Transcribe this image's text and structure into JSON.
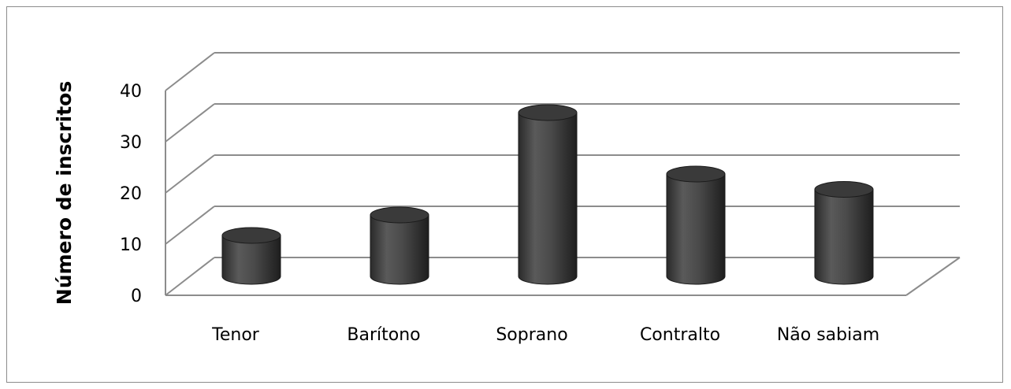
{
  "chart_data": {
    "type": "bar",
    "style": "3d-cylinder",
    "categories": [
      "Tenor",
      "Barítono",
      "Soprano",
      "Contralto",
      "Não sabiam"
    ],
    "values": [
      8,
      12,
      32,
      20,
      17
    ],
    "title": "",
    "xlabel": "",
    "ylabel": "Número de inscritos",
    "ylim": [
      0,
      40
    ],
    "yticks": [
      0,
      10,
      20,
      30,
      40
    ],
    "grid": true,
    "legend": "none",
    "colors": {
      "bar_body": "#4a4a4a",
      "bar_top": "#3a3a3a",
      "gridline": "#8c8c8c",
      "text": "#000000"
    }
  }
}
